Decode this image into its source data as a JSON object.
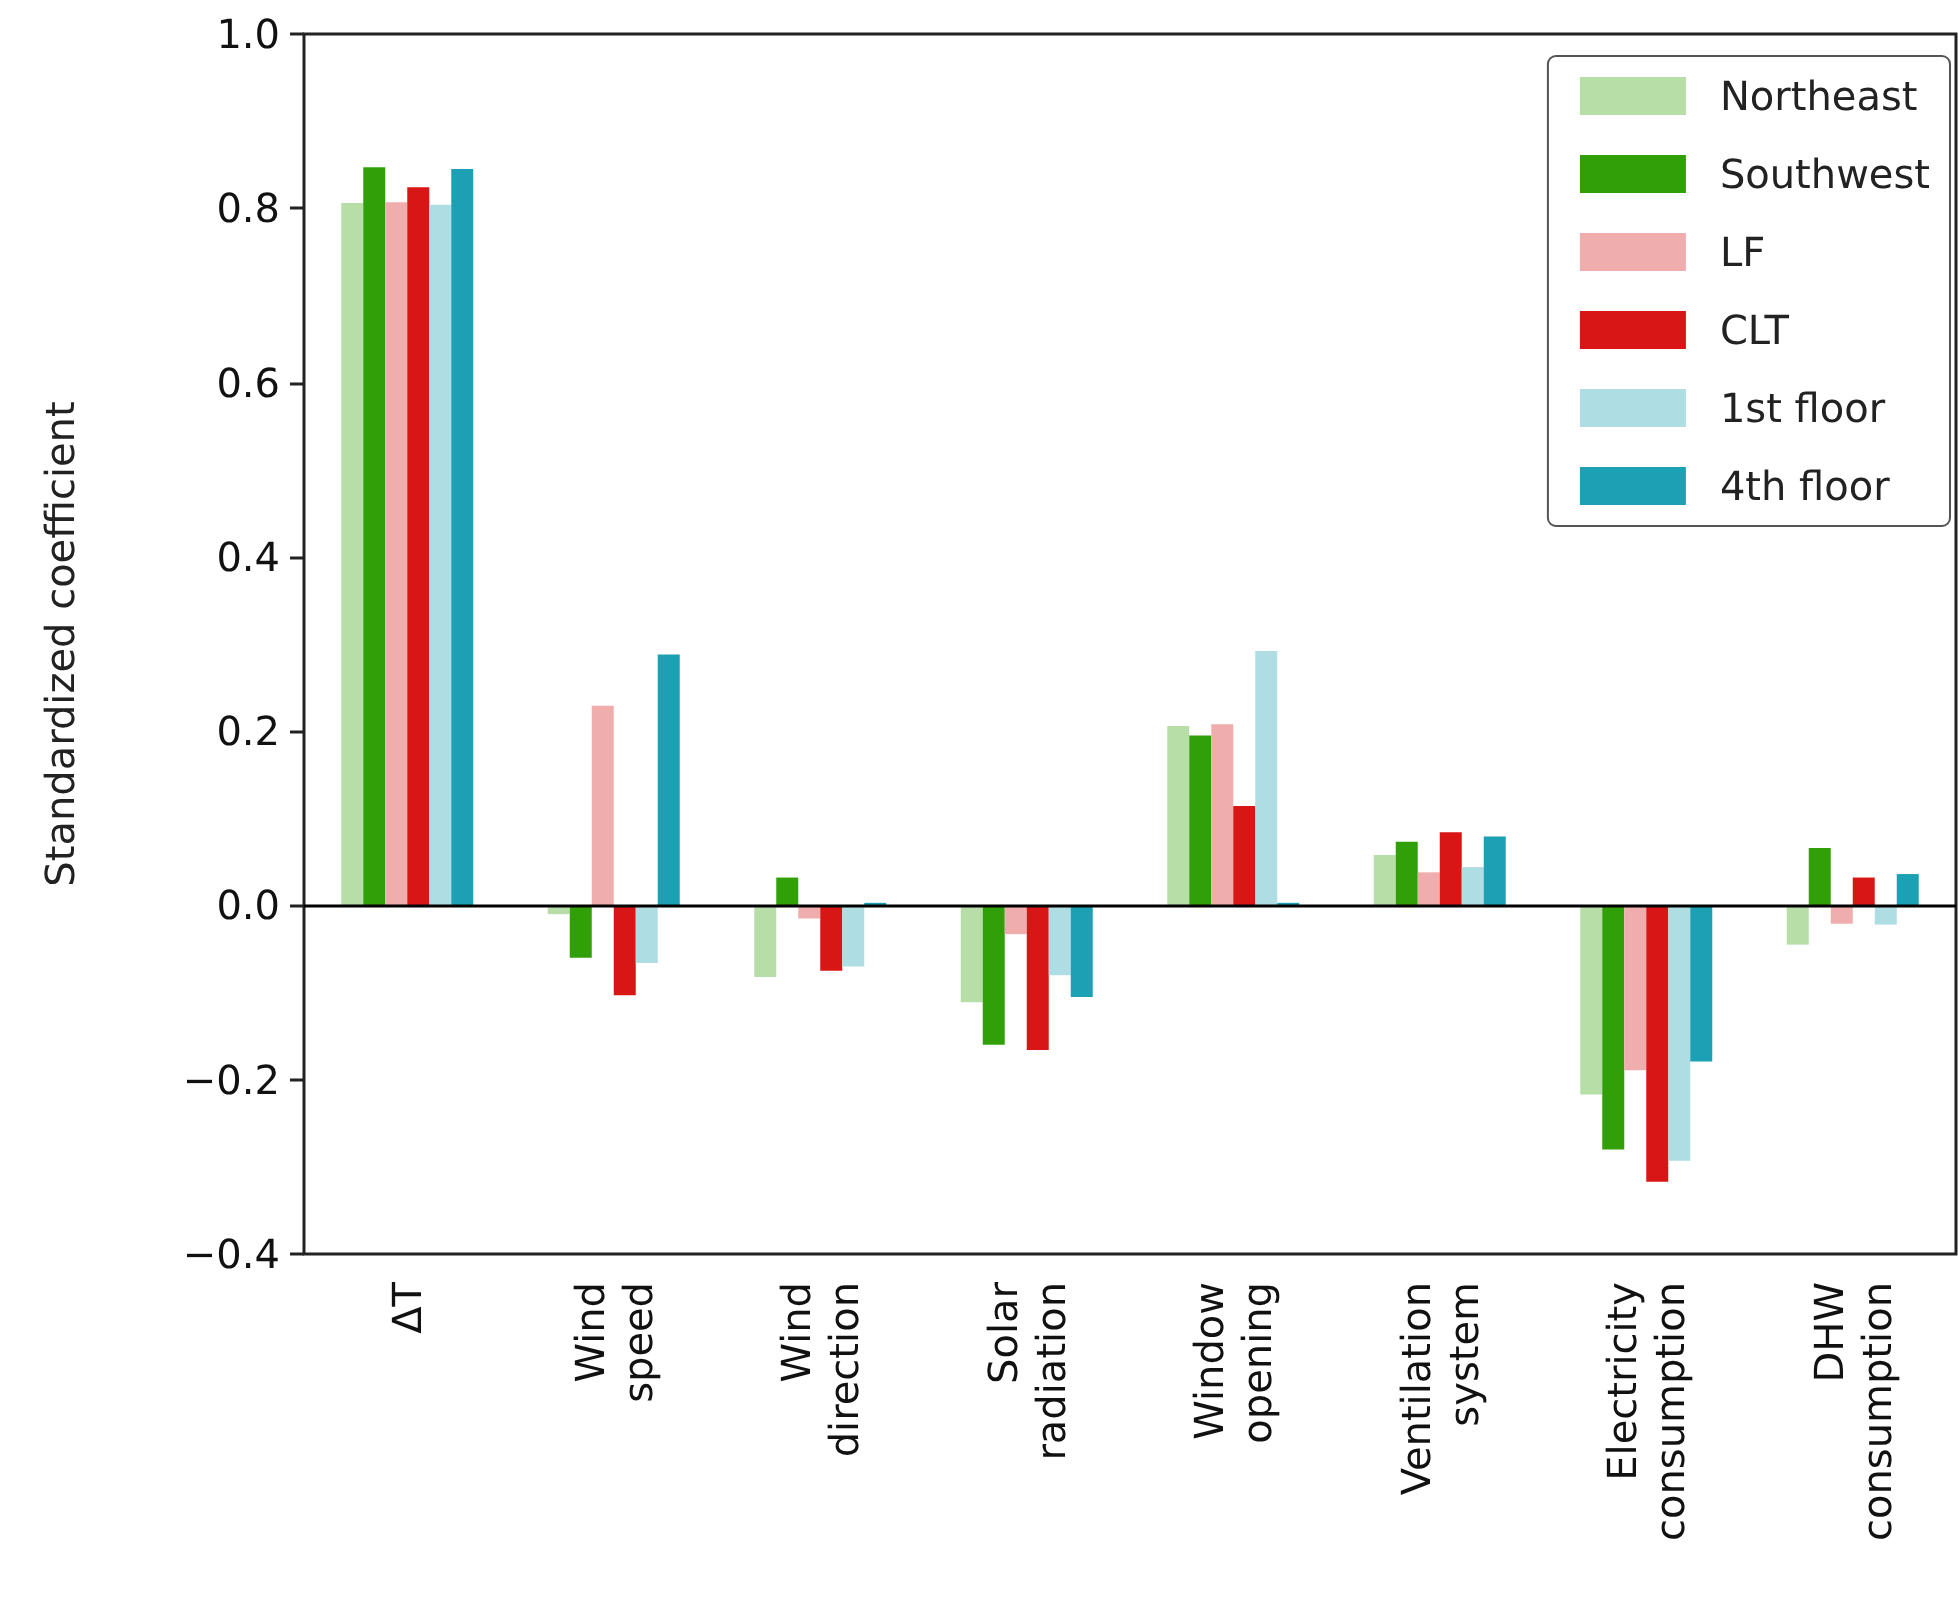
{
  "chart_data": {
    "type": "bar",
    "ylabel": "Standardized coefficient",
    "categories": [
      "ΔT",
      "Wind speed",
      "Wind direction",
      "Solar radiation",
      "Window opening",
      "Ventilation system",
      "Electricity consumption",
      "DHW consumption"
    ],
    "series": [
      {
        "name": "Northeast",
        "color": "#b8dea8",
        "values": [
          0.806,
          -0.01,
          -0.082,
          -0.111,
          0.206,
          0.058,
          -0.217,
          -0.045
        ]
      },
      {
        "name": "Southwest",
        "color": "#31a008",
        "values": [
          0.847,
          -0.06,
          0.032,
          -0.16,
          0.195,
          0.073,
          -0.28,
          0.066
        ]
      },
      {
        "name": "LF",
        "color": "#f0adad",
        "values": [
          0.807,
          0.229,
          -0.015,
          -0.033,
          0.208,
          0.038,
          -0.189,
          -0.021
        ]
      },
      {
        "name": "CLT",
        "color": "#d91616",
        "values": [
          0.824,
          -0.103,
          -0.075,
          -0.166,
          0.114,
          0.084,
          -0.317,
          0.032
        ]
      },
      {
        "name": "1st floor",
        "color": "#aedde3",
        "values": [
          0.804,
          -0.066,
          -0.07,
          -0.08,
          0.292,
          0.044,
          -0.293,
          -0.022
        ]
      },
      {
        "name": "4th floor",
        "color": "#1ca0b4",
        "values": [
          0.845,
          0.288,
          0.003,
          -0.105,
          0.003,
          0.079,
          -0.179,
          0.036
        ]
      }
    ],
    "ylim": [
      -0.4,
      1.0
    ],
    "yticks": [
      {
        "value": -0.4,
        "label": "−0.4"
      },
      {
        "value": -0.2,
        "label": "−0.2"
      },
      {
        "value": 0,
        "label": "0.0"
      },
      {
        "value": 0.2,
        "label": "0.2"
      },
      {
        "value": 0.4,
        "label": "0.4"
      },
      {
        "value": 0.6,
        "label": "0.6"
      },
      {
        "value": 0.8,
        "label": "0.8"
      },
      {
        "value": 1.0,
        "label": "1.0"
      }
    ],
    "ref_lines": [
      {
        "axis": "y",
        "value": 0,
        "color": "#000000"
      }
    ],
    "legend": "top right",
    "grid": false
  }
}
